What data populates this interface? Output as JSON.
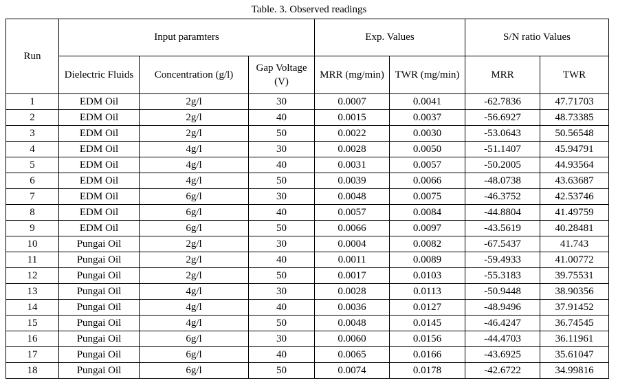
{
  "caption": "Table. 3. Observed readings",
  "headers": {
    "run": "Run",
    "input_group": "Input paramters",
    "exp_group": "Exp. Values",
    "sn_group": "S/N ratio Values",
    "dielectric": "Dielectric Fluids",
    "concentration": "Concentration (g/l)",
    "gap_voltage_line1": "Gap Voltage",
    "gap_voltage_line2": "(V)",
    "mrr_exp": "MRR (mg/min)",
    "twr_exp": "TWR (mg/min)",
    "mrr_sn": "MRR",
    "twr_sn": "TWR"
  },
  "rows": [
    {
      "run": "1",
      "fluid": "EDM Oil",
      "conc": "2g/l",
      "gv": "30",
      "mrr": "0.0007",
      "twr": "0.0041",
      "sn_mrr": "-62.7836",
      "sn_twr": "47.71703"
    },
    {
      "run": "2",
      "fluid": "EDM Oil",
      "conc": "2g/l",
      "gv": "40",
      "mrr": "0.0015",
      "twr": "0.0037",
      "sn_mrr": "-56.6927",
      "sn_twr": "48.73385"
    },
    {
      "run": "3",
      "fluid": "EDM Oil",
      "conc": "2g/l",
      "gv": "50",
      "mrr": "0.0022",
      "twr": "0.0030",
      "sn_mrr": "-53.0643",
      "sn_twr": "50.56548"
    },
    {
      "run": "4",
      "fluid": "EDM Oil",
      "conc": "4g/l",
      "gv": "30",
      "mrr": "0.0028",
      "twr": "0.0050",
      "sn_mrr": "-51.1407",
      "sn_twr": "45.94791"
    },
    {
      "run": "5",
      "fluid": "EDM Oil",
      "conc": "4g/l",
      "gv": "40",
      "mrr": "0.0031",
      "twr": "0.0057",
      "sn_mrr": "-50.2005",
      "sn_twr": "44.93564"
    },
    {
      "run": "6",
      "fluid": "EDM Oil",
      "conc": "4g/l",
      "gv": "50",
      "mrr": "0.0039",
      "twr": "0.0066",
      "sn_mrr": "-48.0738",
      "sn_twr": "43.63687"
    },
    {
      "run": "7",
      "fluid": "EDM Oil",
      "conc": "6g/l",
      "gv": "30",
      "mrr": "0.0048",
      "twr": "0.0075",
      "sn_mrr": "-46.3752",
      "sn_twr": "42.53746"
    },
    {
      "run": "8",
      "fluid": "EDM Oil",
      "conc": "6g/l",
      "gv": "40",
      "mrr": "0.0057",
      "twr": "0.0084",
      "sn_mrr": "-44.8804",
      "sn_twr": "41.49759"
    },
    {
      "run": "9",
      "fluid": "EDM Oil",
      "conc": "6g/l",
      "gv": "50",
      "mrr": "0.0066",
      "twr": "0.0097",
      "sn_mrr": "-43.5619",
      "sn_twr": "40.28481"
    },
    {
      "run": "10",
      "fluid": "Pungai Oil",
      "conc": "2g/l",
      "gv": "30",
      "mrr": "0.0004",
      "twr": "0.0082",
      "sn_mrr": "-67.5437",
      "sn_twr": "41.743"
    },
    {
      "run": "11",
      "fluid": "Pungai Oil",
      "conc": "2g/l",
      "gv": "40",
      "mrr": "0.0011",
      "twr": "0.0089",
      "sn_mrr": "-59.4933",
      "sn_twr": "41.00772"
    },
    {
      "run": "12",
      "fluid": "Pungai Oil",
      "conc": "2g/l",
      "gv": "50",
      "mrr": "0.0017",
      "twr": "0.0103",
      "sn_mrr": "-55.3183",
      "sn_twr": "39.75531"
    },
    {
      "run": "13",
      "fluid": "Pungai Oil",
      "conc": "4g/l",
      "gv": "30",
      "mrr": "0.0028",
      "twr": "0.0113",
      "sn_mrr": "-50.9448",
      "sn_twr": "38.90356"
    },
    {
      "run": "14",
      "fluid": "Pungai Oil",
      "conc": "4g/l",
      "gv": "40",
      "mrr": "0.0036",
      "twr": "0.0127",
      "sn_mrr": "-48.9496",
      "sn_twr": "37.91452"
    },
    {
      "run": "15",
      "fluid": "Pungai Oil",
      "conc": "4g/l",
      "gv": "50",
      "mrr": "0.0048",
      "twr": "0.0145",
      "sn_mrr": "-46.4247",
      "sn_twr": "36.74545"
    },
    {
      "run": "16",
      "fluid": "Pungai Oil",
      "conc": "6g/l",
      "gv": "30",
      "mrr": "0.0060",
      "twr": "0.0156",
      "sn_mrr": "-44.4703",
      "sn_twr": "36.11961"
    },
    {
      "run": "17",
      "fluid": "Pungai Oil",
      "conc": "6g/l",
      "gv": "40",
      "mrr": "0.0065",
      "twr": "0.0166",
      "sn_mrr": "-43.6925",
      "sn_twr": "35.61047"
    },
    {
      "run": "18",
      "fluid": "Pungai Oil",
      "conc": "6g/l",
      "gv": "50",
      "mrr": "0.0074",
      "twr": "0.0178",
      "sn_mrr": "-42.6722",
      "sn_twr": "34.99816"
    }
  ]
}
